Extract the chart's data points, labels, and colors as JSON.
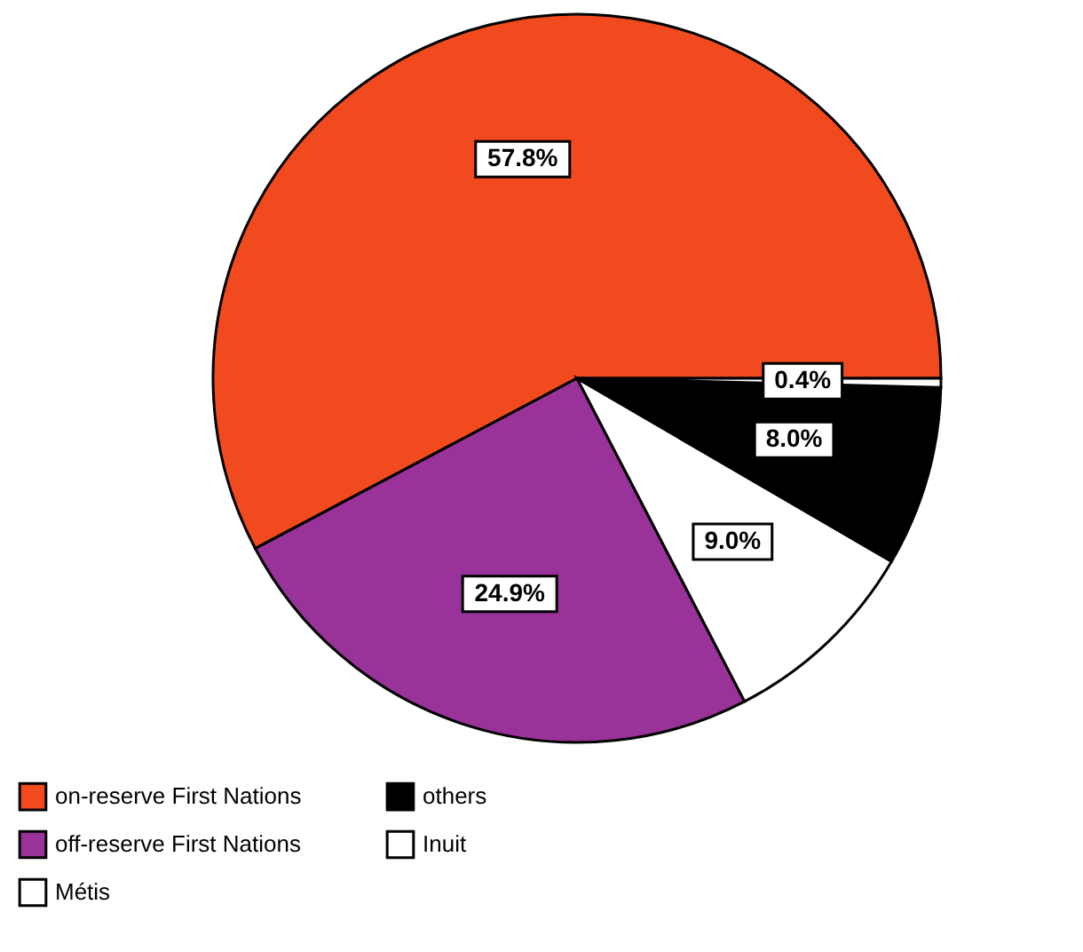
{
  "chart_data": {
    "type": "pie",
    "categories": [
      "on-reserve First Nations",
      "off-reserve First Nations",
      "Métis",
      "others",
      "Inuit"
    ],
    "values": [
      57.8,
      24.9,
      9.0,
      8.0,
      0.4
    ],
    "colors": [
      "#f04a1e",
      "#993399",
      "#ffffff",
      "#000000",
      "#ffffff"
    ],
    "value_labels": [
      "57.8%",
      "24.9%",
      "9.0%",
      "8.0%",
      "0.4%"
    ],
    "legend": "bottom"
  }
}
